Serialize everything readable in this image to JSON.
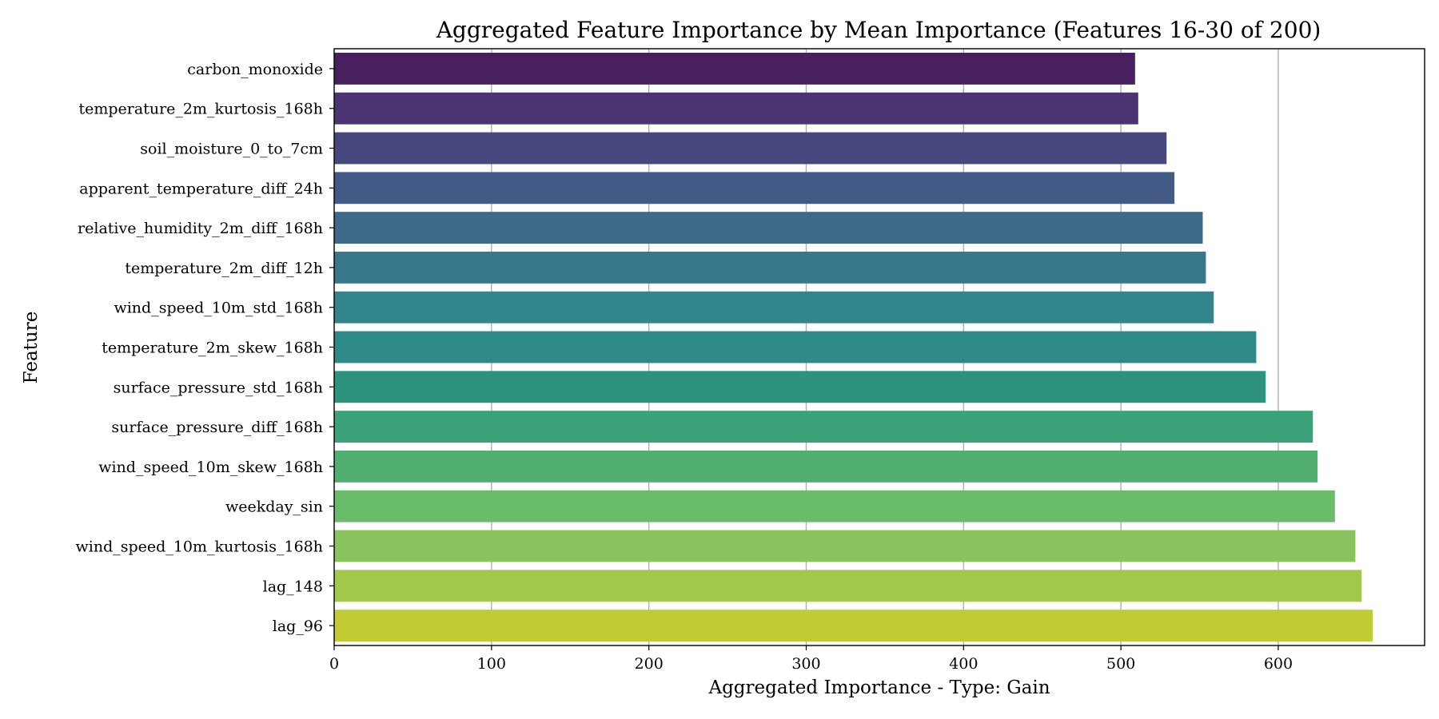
{
  "chart_data": {
    "type": "bar",
    "orientation": "horizontal",
    "title": "Aggregated Feature Importance by Mean Importance (Features 16-30 of 200)",
    "xlabel": "Aggregated Importance - Type: Gain",
    "ylabel": "Feature",
    "xlim": [
      0,
      693
    ],
    "xticks": [
      0,
      100,
      200,
      300,
      400,
      500,
      600
    ],
    "grid": "vertical",
    "colormap": "viridis",
    "categories": [
      "carbon_monoxide",
      "temperature_2m_kurtosis_168h",
      "soil_moisture_0_to_7cm",
      "apparent_temperature_diff_24h",
      "relative_humidity_2m_diff_168h",
      "temperature_2m_diff_12h",
      "wind_speed_10m_std_168h",
      "temperature_2m_skew_168h",
      "surface_pressure_std_168h",
      "surface_pressure_diff_168h",
      "wind_speed_10m_skew_168h",
      "weekday_sin",
      "wind_speed_10m_kurtosis_168h",
      "lag_148",
      "lag_96"
    ],
    "values": [
      509,
      511,
      529,
      534,
      552,
      554,
      559,
      586,
      592,
      622,
      625,
      636,
      649,
      653,
      660
    ],
    "colors": [
      "#481f5f",
      "#4a3572",
      "#47487e",
      "#435a86",
      "#3e6a8a",
      "#38788b",
      "#32848d",
      "#2d8a86",
      "#2d937f",
      "#3aa178",
      "#4fae70",
      "#69bd69",
      "#88c35d",
      "#a2c74a",
      "#c1cb33"
    ]
  }
}
